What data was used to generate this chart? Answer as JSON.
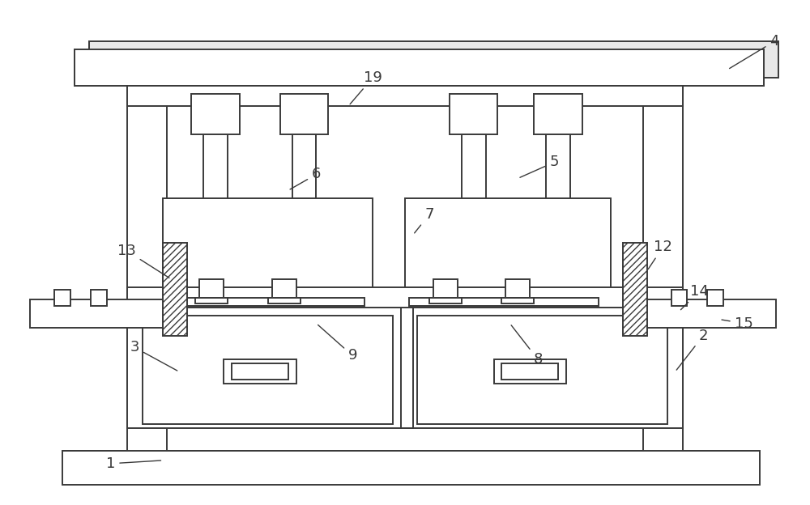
{
  "bg_color": "#ffffff",
  "line_color": "#3a3a3a",
  "lw": 1.4,
  "lw_thin": 0.9
}
